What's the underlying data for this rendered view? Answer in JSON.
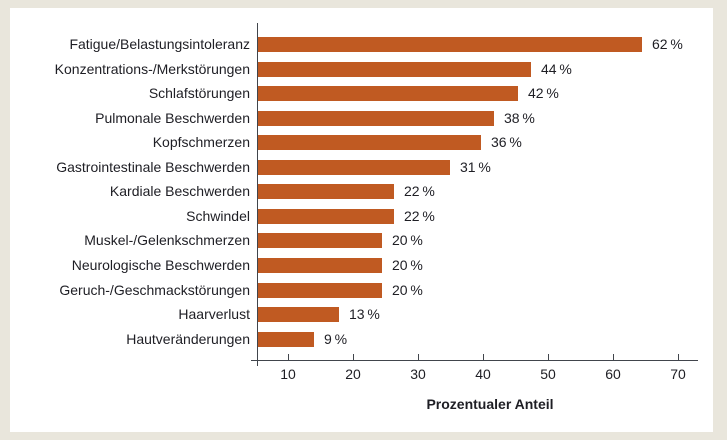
{
  "chart_data": {
    "type": "bar",
    "orientation": "horizontal",
    "categories": [
      "Fatigue/Belastungsintoleranz",
      "Konzentrations-/Merkstörungen",
      "Schlafstörungen",
      "Pulmonale Beschwerden",
      "Kopfschmerzen",
      "Gastrointestinale Beschwerden",
      "Kardiale Beschwerden",
      "Schwindel",
      "Muskel-/Gelenkschmerzen",
      "Neurologische Beschwerden",
      "Geruch-/Geschmackstörungen",
      "Haarverlust",
      "Hautveränderungen"
    ],
    "values": [
      62,
      44,
      42,
      38,
      36,
      31,
      22,
      22,
      20,
      20,
      20,
      13,
      9
    ],
    "value_labels": [
      "62 %",
      "44 %",
      "42 %",
      "38 %",
      "36 %",
      "31 %",
      "22 %",
      "22 %",
      "20 %",
      "20 %",
      "20 %",
      "13 %",
      "9 %"
    ],
    "title": "",
    "xlabel": "Prozentualer Anteil",
    "ylabel": "",
    "x_ticks": [
      10,
      20,
      30,
      40,
      50,
      60,
      70
    ],
    "xlim": [
      5,
      73
    ],
    "grid": false,
    "legend": false,
    "colors": {
      "bar": "#c05a22",
      "background": "#e9e6dc",
      "panel": "#ffffff",
      "text": "#1e1e24",
      "axis": "#41454c"
    }
  }
}
